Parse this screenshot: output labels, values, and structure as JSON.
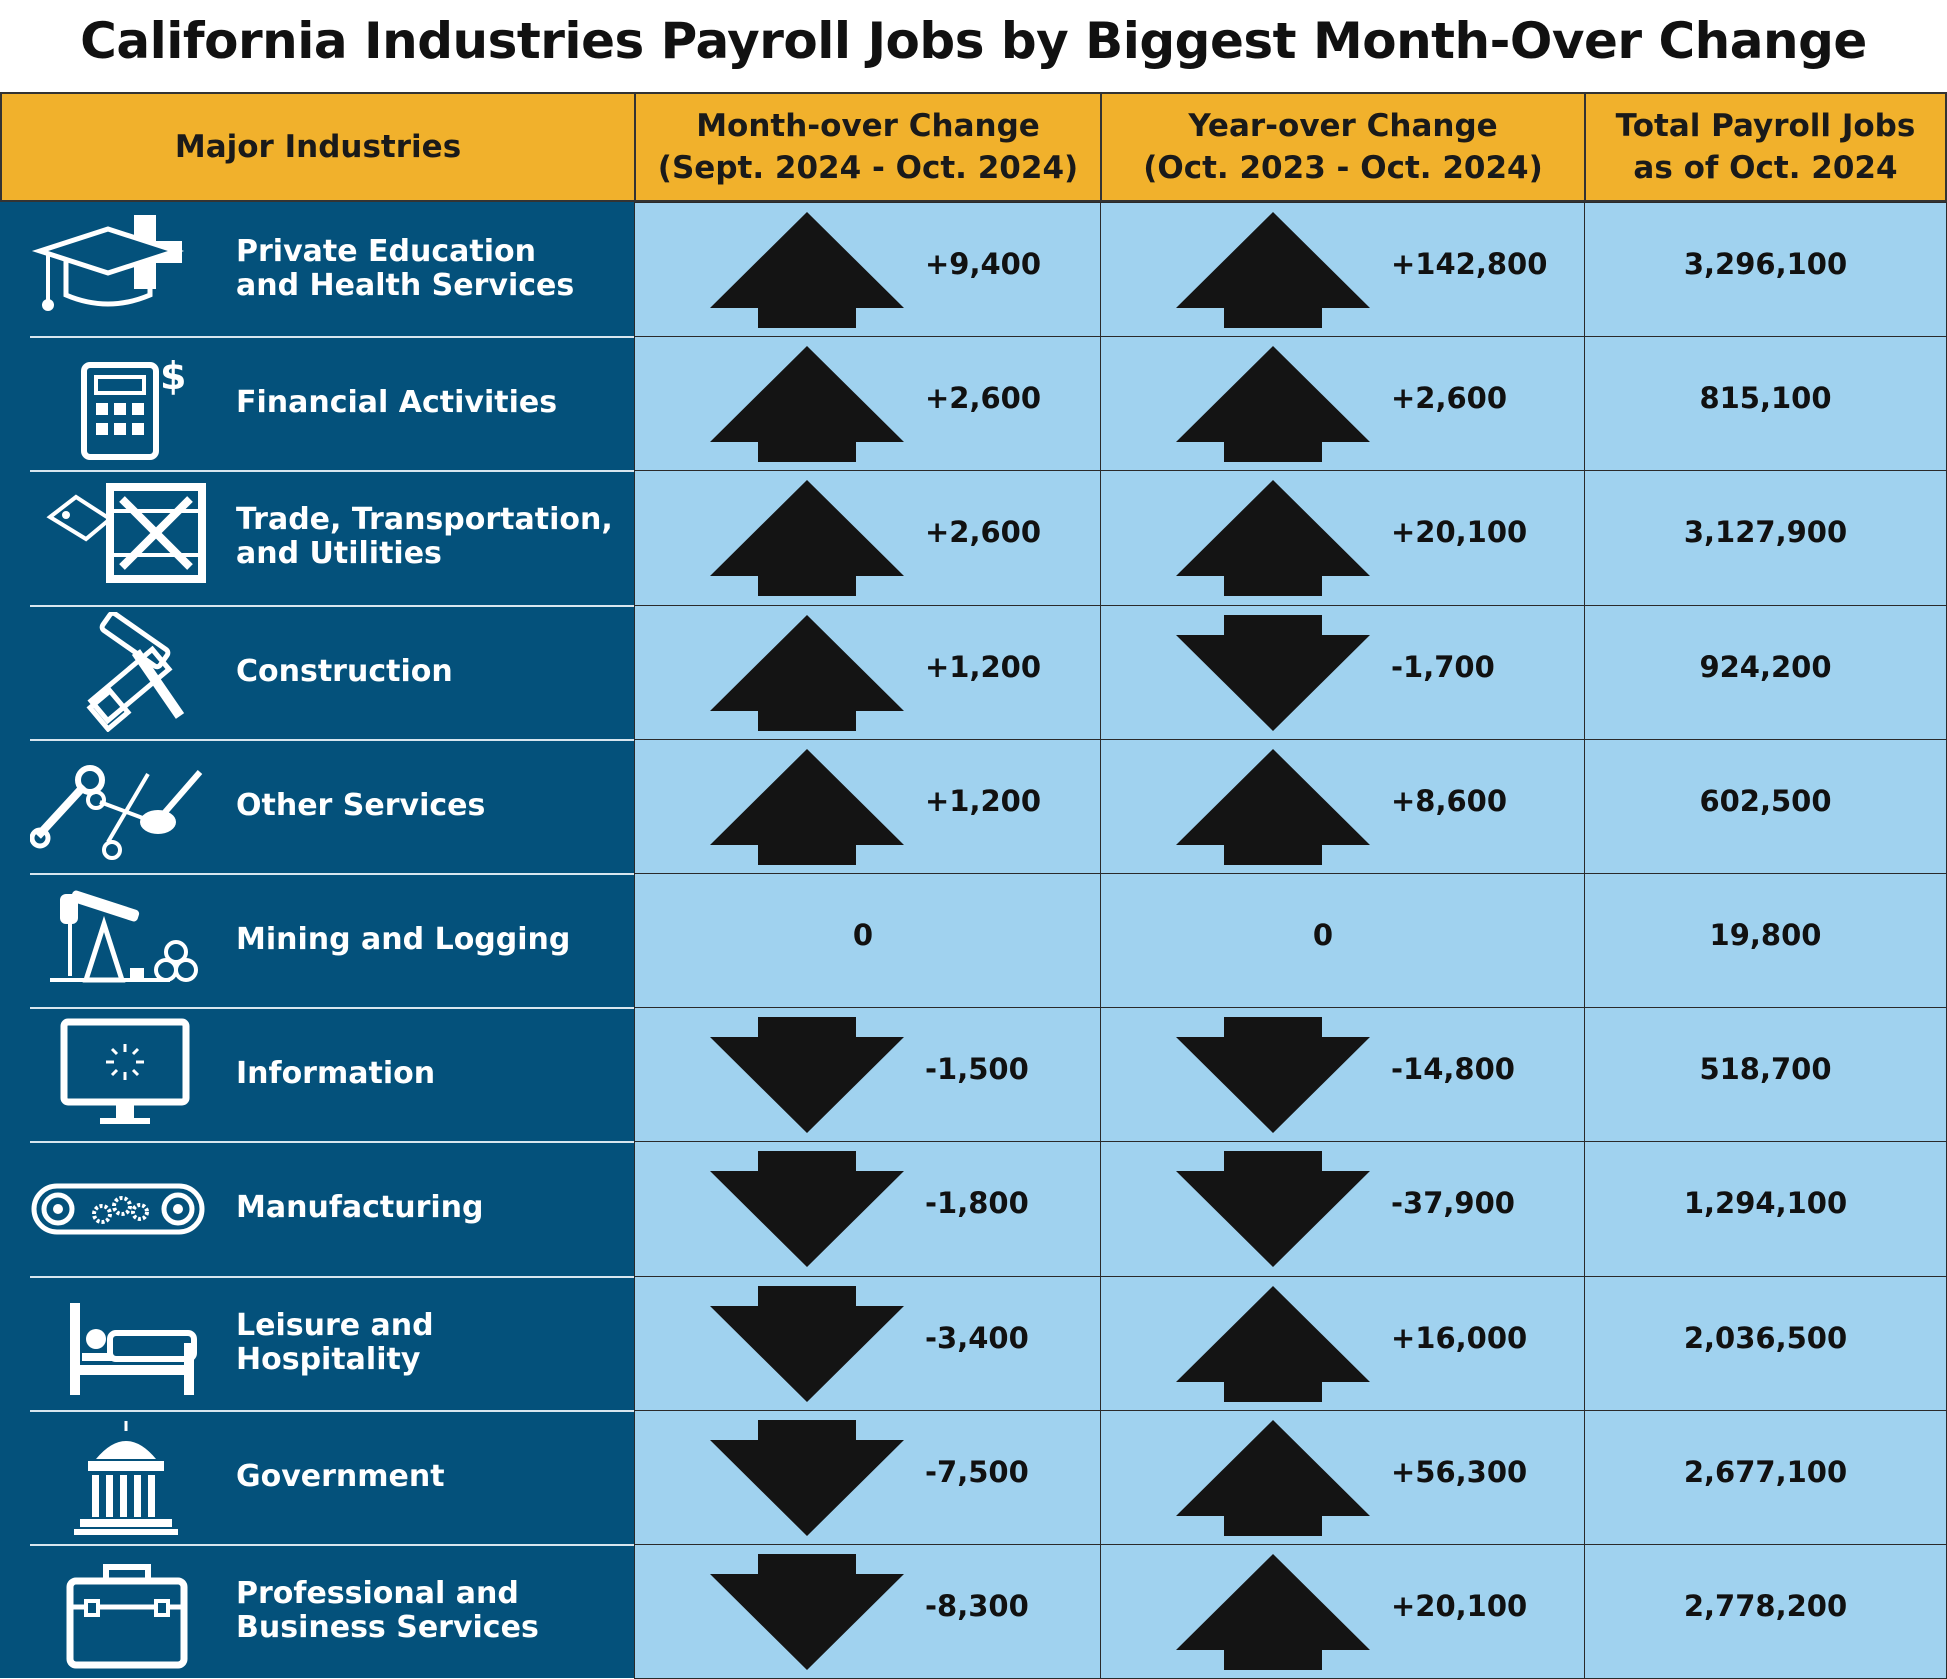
{
  "chart_data": {
    "type": "table",
    "title": "California Industries Payroll Jobs by Biggest Month-Over Change",
    "columns": [
      {
        "key": "industry",
        "label": "Major Industries"
      },
      {
        "key": "mom",
        "label_line1": "Month-over Change",
        "label_line2": "(Sept. 2024 - Oct. 2024)"
      },
      {
        "key": "yoy",
        "label_line1": "Year-over Change",
        "label_line2": "(Oct. 2023 - Oct. 2024)"
      },
      {
        "key": "total",
        "label_line1": "Total Payroll Jobs",
        "label_line2": "as of Oct. 2024"
      }
    ],
    "rows": [
      {
        "icon": "graduation-cap-medical-cross-icon",
        "industry_line1": "Private Education",
        "industry_line2": "and Health Services",
        "mom": 9400,
        "mom_text": "+9,400",
        "yoy": 142800,
        "yoy_text": "+142,800",
        "total": "3,296,100"
      },
      {
        "icon": "calculator-dollar-icon",
        "industry_line1": "Financial Activities",
        "industry_line2": "",
        "mom": 2600,
        "mom_text": "+2,600",
        "yoy": 2600,
        "yoy_text": "+2,600",
        "total": "815,100"
      },
      {
        "icon": "shipping-crate-tag-icon",
        "industry_line1": "Trade, Transportation,",
        "industry_line2": "and Utilities",
        "mom": 2600,
        "mom_text": "+2,600",
        "yoy": 20100,
        "yoy_text": "+20,100",
        "total": "3,127,900"
      },
      {
        "icon": "hammer-saw-icon",
        "industry_line1": "Construction",
        "industry_line2": "",
        "mom": 1200,
        "mom_text": "+1,200",
        "yoy": -1700,
        "yoy_text": "-1,700",
        "total": "924,200"
      },
      {
        "icon": "wrench-scissors-brush-icon",
        "industry_line1": "Other Services",
        "industry_line2": "",
        "mom": 1200,
        "mom_text": "+1,200",
        "yoy": 8600,
        "yoy_text": "+8,600",
        "total": "602,500"
      },
      {
        "icon": "oil-pump-logs-icon",
        "industry_line1": "Mining and Logging",
        "industry_line2": "",
        "mom": 0,
        "mom_text": "0",
        "yoy": 0,
        "yoy_text": "0",
        "total": "19,800"
      },
      {
        "icon": "computer-monitor-icon",
        "industry_line1": "Information",
        "industry_line2": "",
        "mom": -1500,
        "mom_text": "-1,500",
        "yoy": -14800,
        "yoy_text": "-14,800",
        "total": "518,700"
      },
      {
        "icon": "conveyor-gears-icon",
        "industry_line1": "Manufacturing",
        "industry_line2": "",
        "mom": -1800,
        "mom_text": "-1,800",
        "yoy": -37900,
        "yoy_text": "-37,900",
        "total": "1,294,100"
      },
      {
        "icon": "bed-icon",
        "industry_line1": "Leisure and Hospitality",
        "industry_line2": "",
        "mom": -3400,
        "mom_text": "-3,400",
        "yoy": 16000,
        "yoy_text": "+16,000",
        "total": "2,036,500"
      },
      {
        "icon": "capitol-building-icon",
        "industry_line1": "Government",
        "industry_line2": "",
        "mom": -7500,
        "mom_text": "-7,500",
        "yoy": 56300,
        "yoy_text": "+56,300",
        "total": "2,677,100"
      },
      {
        "icon": "toolbox-briefcase-icon",
        "industry_line1": "Professional and",
        "industry_line2": "Business Services",
        "mom": -8300,
        "mom_text": "-8,300",
        "yoy": 20100,
        "yoy_text": "+20,100",
        "total": "2,778,200"
      }
    ],
    "colors": {
      "header": "#f1b12c",
      "label_panel": "#04517b",
      "cell": "#a0d2ef",
      "arrow": "#141414"
    }
  }
}
